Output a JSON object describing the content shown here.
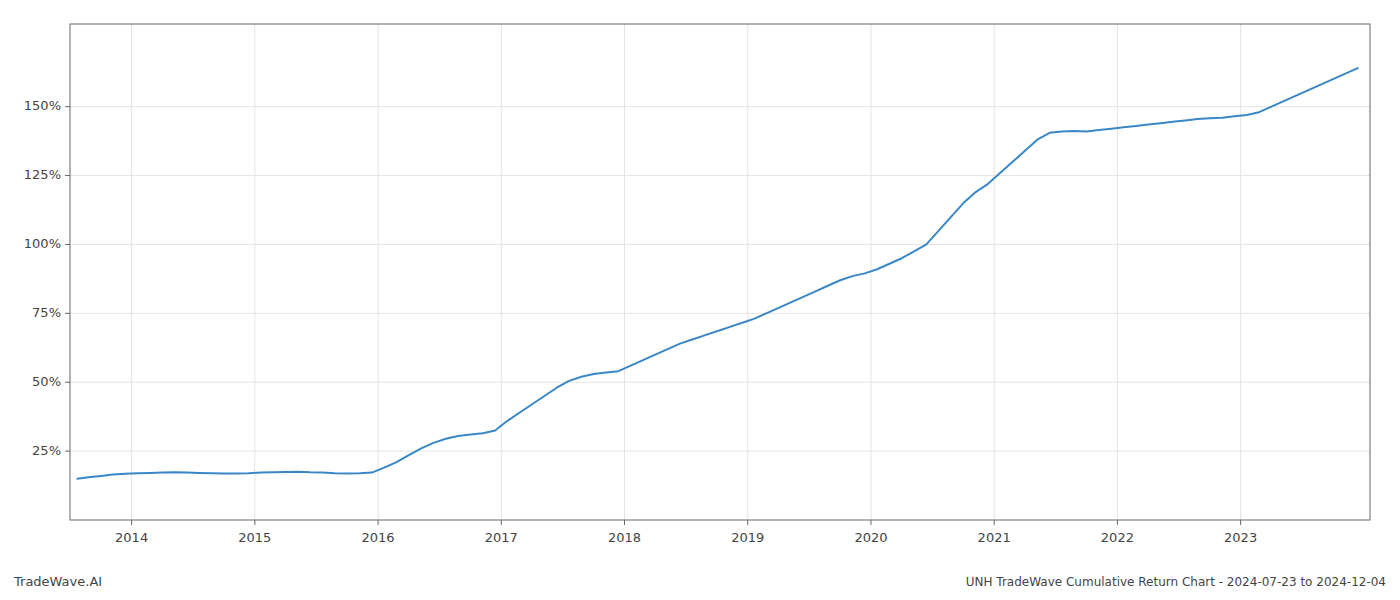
{
  "chart_data": {
    "type": "line",
    "title": "UNH TradeWave Cumulative Return Chart - 2024-07-23 to 2024-12-04",
    "annotations": [
      "TradeWave.AI"
    ],
    "color": "#3a87c8",
    "grid": true,
    "x": [
      2013.56,
      2013.65,
      2013.75,
      2013.85,
      2013.95,
      2014.05,
      2014.15,
      2014.25,
      2014.35,
      2014.45,
      2014.55,
      2014.65,
      2014.75,
      2014.85,
      2014.95,
      2015.05,
      2015.15,
      2015.25,
      2015.35,
      2015.45,
      2015.55,
      2015.65,
      2015.75,
      2015.85,
      2015.95,
      2016.05,
      2016.15,
      2016.25,
      2016.35,
      2016.45,
      2016.55,
      2016.65,
      2016.75,
      2016.85,
      2016.95,
      2017.05,
      2017.15,
      2017.25,
      2017.35,
      2017.45,
      2017.55,
      2017.65,
      2017.75,
      2017.85,
      2017.95,
      2018.05,
      2018.15,
      2018.25,
      2018.35,
      2018.45,
      2018.55,
      2018.65,
      2018.75,
      2018.85,
      2018.95,
      2019.05,
      2019.15,
      2019.25,
      2019.35,
      2019.45,
      2019.55,
      2019.65,
      2019.75,
      2019.85,
      2019.95,
      2020.05,
      2020.15,
      2020.25,
      2020.35,
      2020.45,
      2020.55,
      2020.65,
      2020.75,
      2020.85,
      2020.95,
      2021.05,
      2021.15,
      2021.25,
      2021.35,
      2021.45,
      2021.55,
      2021.65,
      2021.75,
      2021.85,
      2021.95,
      2022.05,
      2022.15,
      2022.25,
      2022.35,
      2022.45,
      2022.55,
      2022.65,
      2022.75,
      2022.85,
      2022.95,
      2023.05,
      2023.15,
      2023.25,
      2023.35,
      2023.45,
      2023.55,
      2023.65,
      2023.75,
      2023.85,
      2023.95
    ],
    "values": [
      15.0,
      15.5,
      16.0,
      16.5,
      16.8,
      17.0,
      17.1,
      17.2,
      17.3,
      17.2,
      17.1,
      17.0,
      16.9,
      16.9,
      17.0,
      17.2,
      17.3,
      17.4,
      17.5,
      17.3,
      17.2,
      17.0,
      16.9,
      17.0,
      17.2,
      19.0,
      21.0,
      23.5,
      26.0,
      28.0,
      29.5,
      30.5,
      31.0,
      31.5,
      32.5,
      36.0,
      39.0,
      42.0,
      45.0,
      48.0,
      50.5,
      52.0,
      53.0,
      53.5,
      54.0,
      56.0,
      58.0,
      60.0,
      62.0,
      64.0,
      65.5,
      67.0,
      68.5,
      70.0,
      71.5,
      73.0,
      75.0,
      77.0,
      79.0,
      81.0,
      83.0,
      85.0,
      87.0,
      88.5,
      89.5,
      91.0,
      93.0,
      95.0,
      97.5,
      100.0,
      105.0,
      110.0,
      115.0,
      119.0,
      122.0,
      126.0,
      130.0,
      134.0,
      138.0,
      140.5,
      141.0,
      141.2,
      141.0,
      141.5,
      142.0,
      142.5,
      143.0,
      143.5,
      144.0,
      144.5,
      145.0,
      145.5,
      145.8,
      146.0,
      146.5,
      147.0,
      148.0,
      150.0,
      152.0,
      154.0,
      156.0,
      158.0,
      160.0,
      162.0,
      164.0
    ],
    "xlim": [
      2013.5,
      2024.05
    ],
    "xticks": [
      2014,
      2015,
      2016,
      2017,
      2018,
      2019,
      2020,
      2021,
      2022,
      2023
    ],
    "ylim": [
      0,
      180
    ],
    "yticks": [
      {
        "value": 25,
        "label": "25%"
      },
      {
        "value": 50,
        "label": "50%"
      },
      {
        "value": 75,
        "label": "75%"
      },
      {
        "value": 100,
        "label": "100%"
      },
      {
        "value": 125,
        "label": "125%"
      },
      {
        "value": 150,
        "label": "150%"
      }
    ]
  }
}
